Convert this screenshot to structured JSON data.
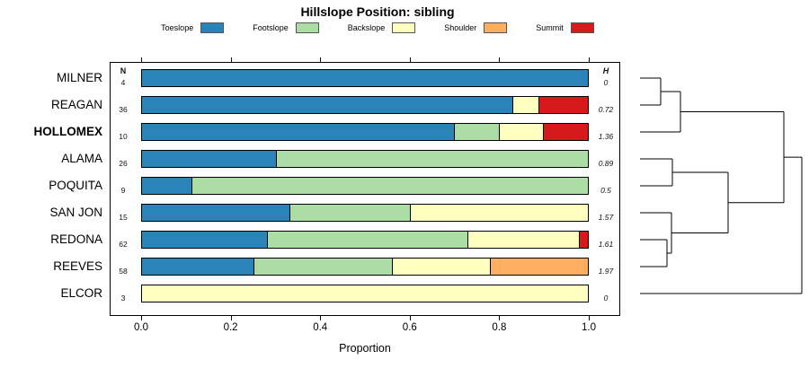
{
  "title": "Hillslope Position: sibling",
  "legend": [
    {
      "label": "Toeslope",
      "color": "#2B83BA"
    },
    {
      "label": "Footslope",
      "color": "#ABDDA4"
    },
    {
      "label": "Backslope",
      "color": "#FFFFBF"
    },
    {
      "label": "Shoulder",
      "color": "#FDAE61"
    },
    {
      "label": "Summit",
      "color": "#D7191C"
    }
  ],
  "columns": {
    "n_header": "N",
    "h_header": "H"
  },
  "axis": {
    "label": "Proportion",
    "ticks": [
      {
        "label": "0.0",
        "value": 0.0
      },
      {
        "label": "0.2",
        "value": 0.2
      },
      {
        "label": "0.4",
        "value": 0.4
      },
      {
        "label": "0.6",
        "value": 0.6
      },
      {
        "label": "0.8",
        "value": 0.8
      },
      {
        "label": "1.0",
        "value": 1.0
      }
    ]
  },
  "chart_data": {
    "type": "bar",
    "stacked": true,
    "orientation": "horizontal",
    "title": "Hillslope Position: sibling",
    "xlabel": "Proportion",
    "xlim": [
      0,
      1
    ],
    "categories": [
      "Toeslope",
      "Footslope",
      "Backslope",
      "Shoulder",
      "Summit"
    ],
    "colors": {
      "Toeslope": "#2B83BA",
      "Footslope": "#ABDDA4",
      "Backslope": "#FFFFBF",
      "Shoulder": "#FDAE61",
      "Summit": "#D7191C"
    },
    "rows": [
      {
        "label": "MILNER",
        "n": 4,
        "h": "0",
        "bold": false,
        "segments": [
          {
            "cat": "Toeslope",
            "value": 1.0
          }
        ]
      },
      {
        "label": "REAGAN",
        "n": 36,
        "h": "0.72",
        "bold": false,
        "segments": [
          {
            "cat": "Toeslope",
            "value": 0.83
          },
          {
            "cat": "Backslope",
            "value": 0.06
          },
          {
            "cat": "Summit",
            "value": 0.11
          }
        ]
      },
      {
        "label": "HOLLOMEX",
        "n": 10,
        "h": "1.36",
        "bold": true,
        "segments": [
          {
            "cat": "Toeslope",
            "value": 0.7
          },
          {
            "cat": "Footslope",
            "value": 0.1
          },
          {
            "cat": "Backslope",
            "value": 0.1
          },
          {
            "cat": "Summit",
            "value": 0.1
          }
        ]
      },
      {
        "label": "ALAMA",
        "n": 26,
        "h": "0.89",
        "bold": false,
        "segments": [
          {
            "cat": "Toeslope",
            "value": 0.3
          },
          {
            "cat": "Footslope",
            "value": 0.7
          }
        ]
      },
      {
        "label": "POQUITA",
        "n": 9,
        "h": "0.5",
        "bold": false,
        "segments": [
          {
            "cat": "Toeslope",
            "value": 0.11
          },
          {
            "cat": "Footslope",
            "value": 0.89
          }
        ]
      },
      {
        "label": "SAN JON",
        "n": 15,
        "h": "1.57",
        "bold": false,
        "segments": [
          {
            "cat": "Toeslope",
            "value": 0.33
          },
          {
            "cat": "Footslope",
            "value": 0.27
          },
          {
            "cat": "Backslope",
            "value": 0.4
          }
        ]
      },
      {
        "label": "REDONA",
        "n": 62,
        "h": "1.61",
        "bold": false,
        "segments": [
          {
            "cat": "Toeslope",
            "value": 0.28
          },
          {
            "cat": "Footslope",
            "value": 0.45
          },
          {
            "cat": "Backslope",
            "value": 0.25
          },
          {
            "cat": "Summit",
            "value": 0.02
          }
        ]
      },
      {
        "label": "REEVES",
        "n": 58,
        "h": "1.97",
        "bold": false,
        "segments": [
          {
            "cat": "Toeslope",
            "value": 0.25
          },
          {
            "cat": "Footslope",
            "value": 0.31
          },
          {
            "cat": "Backslope",
            "value": 0.22
          },
          {
            "cat": "Shoulder",
            "value": 0.22
          }
        ]
      },
      {
        "label": "ELCOR",
        "n": 3,
        "h": "0",
        "bold": false,
        "segments": [
          {
            "cat": "Backslope",
            "value": 1.0
          }
        ]
      }
    ],
    "dendrogram": {
      "leaf_x": 712,
      "merges": [
        {
          "id": "A",
          "a": "MILNER",
          "b": "REAGAN",
          "x": 735
        },
        {
          "id": "B",
          "a": "A",
          "b": "HOLLOMEX",
          "x": 757
        },
        {
          "id": "C",
          "a": "ALAMA",
          "b": "POQUITA",
          "x": 748
        },
        {
          "id": "D",
          "a": "REDONA",
          "b": "REEVES",
          "x": 742
        },
        {
          "id": "E",
          "a": "SAN JON",
          "b": "D",
          "x": 747
        },
        {
          "id": "F",
          "a": "C",
          "b": "E",
          "x": 810
        },
        {
          "id": "G",
          "a": "B",
          "b": "F",
          "x": 872
        },
        {
          "id": "root",
          "a": "G",
          "b": "ELCOR",
          "x": 892
        }
      ]
    }
  }
}
